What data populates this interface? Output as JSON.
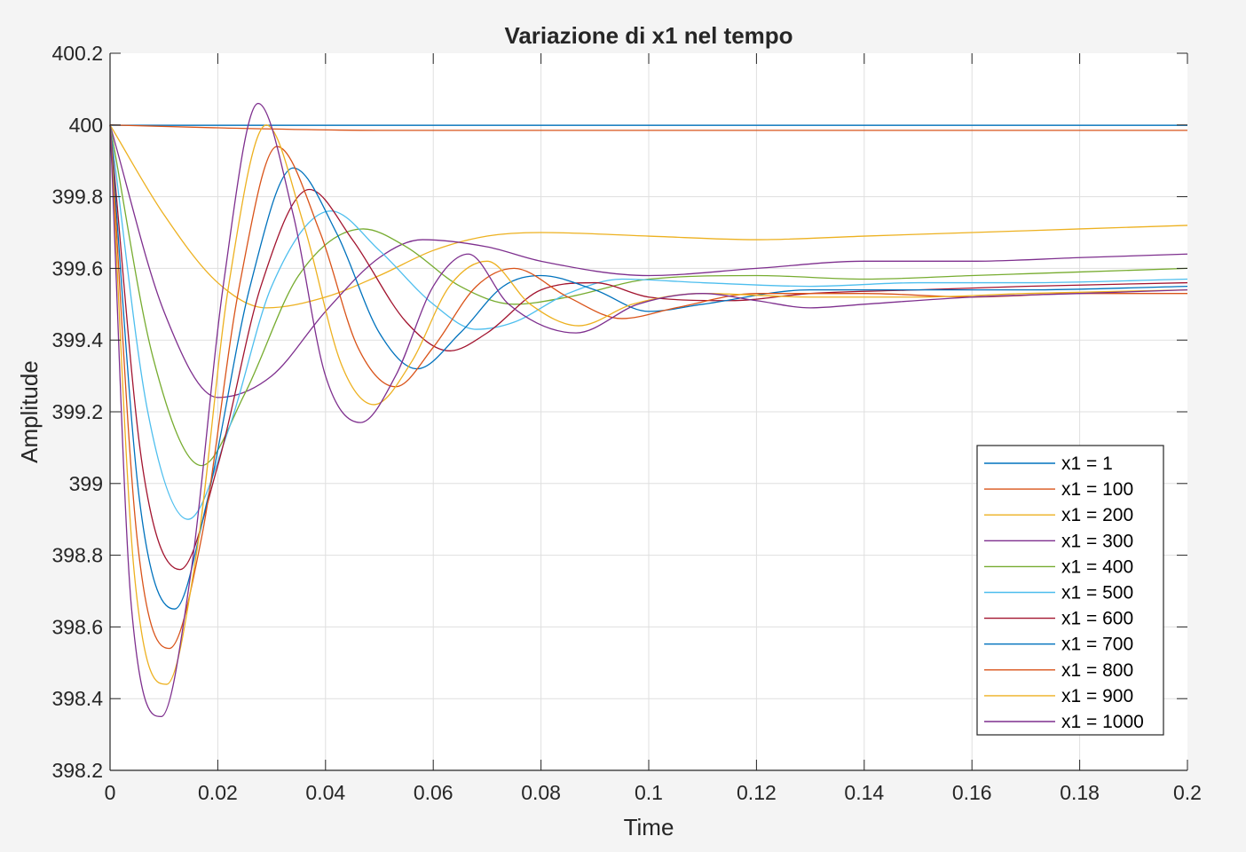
{
  "chart_data": {
    "type": "line",
    "title": "Variazione di x1 nel tempo",
    "xlabel": "Time",
    "ylabel": "Amplitude",
    "xlim": [
      0,
      0.2
    ],
    "ylim": [
      398.2,
      400.2
    ],
    "xticks": [
      0,
      0.02,
      0.04,
      0.06,
      0.08,
      0.1,
      0.12,
      0.14,
      0.16,
      0.18,
      0.2
    ],
    "xtick_labels": [
      "0",
      "0.02",
      "0.04",
      "0.06",
      "0.08",
      "0.1",
      "0.12",
      "0.14",
      "0.16",
      "0.18",
      "0.2"
    ],
    "yticks": [
      398.2,
      398.4,
      398.6,
      398.8,
      399,
      399.2,
      399.4,
      399.6,
      399.8,
      400,
      400.2
    ],
    "ytick_labels": [
      "398.2",
      "398.4",
      "398.6",
      "398.8",
      "399",
      "399.2",
      "399.4",
      "399.6",
      "399.8",
      "400",
      "400.2"
    ],
    "grid": true,
    "legend_position": "bottom-right",
    "series": [
      {
        "name": "x1 = 1",
        "color": "#0072bd",
        "x": [
          0,
          0.1,
          0.2
        ],
        "y": [
          399.999,
          399.999,
          399.999
        ]
      },
      {
        "name": "x1 = 100",
        "color": "#d95319",
        "x": [
          0,
          0.02,
          0.05,
          0.1,
          0.2
        ],
        "y": [
          400.0,
          399.992,
          399.985,
          399.985,
          399.985
        ]
      },
      {
        "name": "x1 = 200",
        "color": "#edb120",
        "x": [
          0,
          0.01,
          0.02,
          0.029,
          0.04,
          0.05,
          0.06,
          0.07,
          0.08,
          0.1,
          0.12,
          0.14,
          0.16,
          0.18,
          0.2
        ],
        "y": [
          400.0,
          399.75,
          399.56,
          399.49,
          399.52,
          399.58,
          399.65,
          399.69,
          399.7,
          399.69,
          399.68,
          399.69,
          399.7,
          399.71,
          399.72
        ]
      },
      {
        "name": "x1 = 300",
        "color": "#7e2f8e",
        "x": [
          0,
          0.01,
          0.02,
          0.03,
          0.04,
          0.05,
          0.058,
          0.07,
          0.08,
          0.1,
          0.12,
          0.14,
          0.16,
          0.18,
          0.2
        ],
        "y": [
          400.0,
          399.48,
          399.24,
          399.3,
          399.48,
          399.63,
          399.68,
          399.66,
          399.62,
          399.58,
          399.6,
          399.62,
          399.62,
          399.63,
          399.64
        ]
      },
      {
        "name": "x1 = 400",
        "color": "#77ac30",
        "x": [
          0,
          0.008,
          0.017,
          0.025,
          0.035,
          0.047,
          0.055,
          0.065,
          0.075,
          0.085,
          0.1,
          0.12,
          0.14,
          0.16,
          0.18,
          0.2
        ],
        "y": [
          400.0,
          399.35,
          399.05,
          399.25,
          399.58,
          399.71,
          399.66,
          399.55,
          399.5,
          399.52,
          399.57,
          399.58,
          399.57,
          399.58,
          399.59,
          399.6
        ]
      },
      {
        "name": "x1 = 500",
        "color": "#4dbeee",
        "x": [
          0,
          0.007,
          0.0145,
          0.022,
          0.03,
          0.041,
          0.05,
          0.06,
          0.068,
          0.075,
          0.085,
          0.095,
          0.11,
          0.13,
          0.15,
          0.17,
          0.2
        ],
        "y": [
          400.0,
          399.2,
          398.9,
          399.15,
          399.55,
          399.76,
          399.65,
          399.5,
          399.43,
          399.45,
          399.53,
          399.57,
          399.56,
          399.55,
          399.56,
          399.56,
          399.57
        ]
      },
      {
        "name": "x1 = 600",
        "color": "#a2142f",
        "x": [
          0,
          0.006,
          0.013,
          0.02,
          0.028,
          0.037,
          0.045,
          0.055,
          0.063,
          0.07,
          0.08,
          0.09,
          0.1,
          0.115,
          0.13,
          0.15,
          0.17,
          0.2
        ],
        "y": [
          400.0,
          399.05,
          398.76,
          399.05,
          399.55,
          399.82,
          399.68,
          399.45,
          399.37,
          399.42,
          399.54,
          399.56,
          399.52,
          399.51,
          399.53,
          399.54,
          399.55,
          399.56
        ]
      },
      {
        "name": "x1 = 700",
        "color": "#0072bd",
        "x": [
          0,
          0.0055,
          0.012,
          0.018,
          0.026,
          0.034,
          0.042,
          0.05,
          0.057,
          0.065,
          0.073,
          0.08,
          0.09,
          0.1,
          0.11,
          0.13,
          0.15,
          0.17,
          0.2
        ],
        "y": [
          400.0,
          398.95,
          398.65,
          398.95,
          399.55,
          399.88,
          399.7,
          399.42,
          399.32,
          399.42,
          399.55,
          399.58,
          399.54,
          399.48,
          399.5,
          399.54,
          399.54,
          399.54,
          399.55
        ]
      },
      {
        "name": "x1 = 800",
        "color": "#d95319",
        "x": [
          0,
          0.005,
          0.011,
          0.017,
          0.024,
          0.031,
          0.039,
          0.046,
          0.053,
          0.06,
          0.068,
          0.075,
          0.085,
          0.095,
          0.105,
          0.12,
          0.14,
          0.16,
          0.18,
          0.2
        ],
        "y": [
          400.0,
          398.85,
          398.54,
          398.85,
          399.55,
          399.94,
          399.7,
          399.38,
          399.27,
          399.38,
          399.55,
          399.6,
          399.52,
          399.46,
          399.49,
          399.53,
          399.53,
          399.52,
          399.53,
          399.53
        ]
      },
      {
        "name": "x1 = 900",
        "color": "#edb120",
        "x": [
          0,
          0.0045,
          0.0105,
          0.016,
          0.022,
          0.029,
          0.036,
          0.043,
          0.049,
          0.056,
          0.063,
          0.07,
          0.078,
          0.087,
          0.097,
          0.11,
          0.13,
          0.15,
          0.17,
          0.2
        ],
        "y": [
          400.0,
          398.75,
          398.44,
          398.8,
          399.55,
          400.0,
          399.72,
          399.33,
          399.22,
          399.34,
          399.55,
          399.62,
          399.5,
          399.44,
          399.5,
          399.53,
          399.52,
          399.52,
          399.53,
          399.54
        ]
      },
      {
        "name": "x1 = 1000",
        "color": "#7e2f8e",
        "x": [
          0,
          0.004,
          0.0095,
          0.015,
          0.021,
          0.0275,
          0.034,
          0.04,
          0.0465,
          0.053,
          0.06,
          0.0665,
          0.074,
          0.0865,
          0.098,
          0.11,
          0.12,
          0.13,
          0.14,
          0.16,
          0.18,
          0.2
        ],
        "y": [
          400.0,
          398.65,
          398.35,
          398.75,
          399.55,
          400.06,
          399.75,
          399.3,
          399.17,
          399.3,
          399.55,
          399.64,
          399.5,
          399.42,
          399.5,
          399.53,
          399.51,
          399.49,
          399.5,
          399.52,
          399.53,
          399.54
        ]
      }
    ]
  }
}
